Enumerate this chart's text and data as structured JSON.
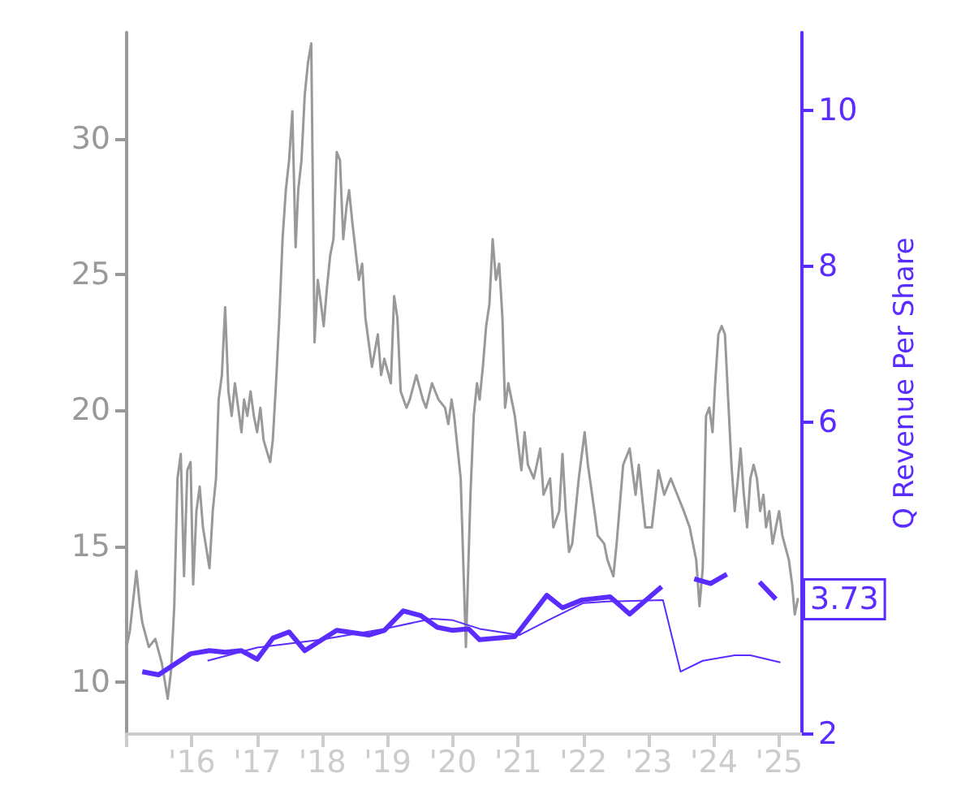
{
  "chart_data": {
    "type": "line",
    "ylabel": null,
    "y2label": "Q Revenue Per Share",
    "xlim": [
      2015,
      2025.35
    ],
    "ylim": [
      8.1,
      33.9
    ],
    "y2lim": [
      2,
      11
    ],
    "xticks": [
      {
        "value": 2015,
        "label": null
      },
      {
        "value": 2016,
        "label": "'16"
      },
      {
        "value": 2017,
        "label": "'17"
      },
      {
        "value": 2018,
        "label": "'18"
      },
      {
        "value": 2019,
        "label": "'19"
      },
      {
        "value": 2020,
        "label": "'20"
      },
      {
        "value": 2021,
        "label": "'21"
      },
      {
        "value": 2022,
        "label": "'22"
      },
      {
        "value": 2023,
        "label": "'23"
      },
      {
        "value": 2024,
        "label": "'24"
      },
      {
        "value": 2025,
        "label": "'25"
      }
    ],
    "yticks": [
      10,
      15,
      20,
      25,
      30
    ],
    "y2ticks": [
      2,
      6,
      8,
      10
    ],
    "marker": "none",
    "line_style": "solid",
    "series": [
      {
        "color": "#999999",
        "x": [
          2015.0,
          2015.05,
          2015.15,
          2015.2,
          2015.24,
          2015.34,
          2015.44,
          2015.54,
          2015.63,
          2015.68,
          2015.73,
          2015.78,
          2015.83,
          2015.88,
          2015.93,
          2015.98,
          2016.02,
          2016.07,
          2016.12,
          2016.17,
          2016.27,
          2016.32,
          2016.37,
          2016.41,
          2016.46,
          2016.51,
          2016.56,
          2016.61,
          2016.66,
          2016.71,
          2016.76,
          2016.8,
          2016.85,
          2016.9,
          2016.95,
          2017.0,
          2017.05,
          2017.1,
          2017.2,
          2017.24,
          2017.29,
          2017.34,
          2017.39,
          2017.44,
          2017.49,
          2017.54,
          2017.59,
          2017.63,
          2017.68,
          2017.73,
          2017.78,
          2017.83,
          2017.88,
          2017.93,
          2017.98,
          2018.02,
          2018.07,
          2018.12,
          2018.17,
          2018.22,
          2018.27,
          2018.32,
          2018.37,
          2018.41,
          2018.46,
          2018.56,
          2018.61,
          2018.66,
          2018.71,
          2018.76,
          2018.85,
          2018.9,
          2018.95,
          2019.05,
          2019.1,
          2019.15,
          2019.2,
          2019.29,
          2019.34,
          2019.44,
          2019.54,
          2019.59,
          2019.68,
          2019.78,
          2019.88,
          2019.93,
          2019.98,
          2020.02,
          2020.12,
          2020.2,
          2020.27,
          2020.32,
          2020.37,
          2020.41,
          2020.46,
          2020.51,
          2020.56,
          2020.61,
          2020.66,
          2020.71,
          2020.76,
          2020.8,
          2020.85,
          2020.9,
          2020.95,
          2021.05,
          2021.1,
          2021.15,
          2021.24,
          2021.34,
          2021.39,
          2021.49,
          2021.54,
          2021.63,
          2021.68,
          2021.73,
          2021.78,
          2021.83,
          2021.93,
          2022.02,
          2022.07,
          2022.17,
          2022.22,
          2022.32,
          2022.37,
          2022.46,
          2022.51,
          2022.61,
          2022.71,
          2022.8,
          2022.85,
          2022.95,
          2023.05,
          2023.15,
          2023.24,
          2023.34,
          2023.44,
          2023.54,
          2023.63,
          2023.73,
          2023.78,
          2023.83,
          2023.88,
          2023.93,
          2023.98,
          2024.02,
          2024.07,
          2024.12,
          2024.17,
          2024.22,
          2024.27,
          2024.32,
          2024.37,
          2024.41,
          2024.46,
          2024.51,
          2024.56,
          2024.61,
          2024.66,
          2024.71,
          2024.76,
          2024.8,
          2024.85,
          2024.9,
          2024.95,
          2025.0,
          2025.05,
          2025.15,
          2025.2,
          2025.24,
          2025.29
        ],
        "values": [
          11.3,
          11.9,
          14.1,
          12.9,
          12.2,
          11.3,
          11.6,
          10.7,
          9.4,
          10.4,
          12.8,
          17.5,
          18.4,
          13.9,
          17.8,
          18.1,
          13.6,
          16.3,
          17.2,
          15.7,
          14.2,
          16.3,
          17.5,
          20.4,
          21.3,
          23.8,
          20.7,
          19.8,
          21,
          20.1,
          19.2,
          20.4,
          19.8,
          20.7,
          19.8,
          19.2,
          20.1,
          18.9,
          18.1,
          18.9,
          21,
          23.4,
          26.3,
          28.1,
          29.2,
          31,
          26,
          28.1,
          29.2,
          31.6,
          32.8,
          33.5,
          22.5,
          24.8,
          23.9,
          23.1,
          24.5,
          25.7,
          26.3,
          29.5,
          29.2,
          26.3,
          27.5,
          28.1,
          26.9,
          24.8,
          25.4,
          23.4,
          22.5,
          21.6,
          22.8,
          21.3,
          21.9,
          21,
          24.2,
          23.4,
          20.7,
          20.1,
          20.4,
          21.3,
          20.4,
          20.1,
          21,
          20.4,
          20.1,
          19.5,
          20.4,
          19.8,
          17.5,
          11.3,
          16.9,
          19.8,
          21,
          20.4,
          21.6,
          23.1,
          23.9,
          26.3,
          24.8,
          25.4,
          23.4,
          20.1,
          21,
          20.4,
          19.8,
          17.8,
          19.2,
          18,
          17.5,
          18.6,
          16.9,
          17.5,
          15.7,
          16.3,
          18.4,
          16.3,
          14.8,
          15.1,
          17.5,
          19.2,
          18,
          16.3,
          15.4,
          15.1,
          14.5,
          13.9,
          15.1,
          18,
          18.6,
          16.9,
          18,
          15.7,
          15.7,
          17.8,
          16.9,
          17.5,
          16.9,
          16.3,
          15.7,
          14.5,
          12.8,
          14.2,
          19.8,
          20.1,
          19.2,
          21,
          22.8,
          23.1,
          22.8,
          20.4,
          18,
          16.3,
          17.5,
          18.6,
          16.9,
          15.7,
          17.5,
          18,
          17.5,
          16.3,
          16.9,
          15.7,
          16.3,
          15.1,
          15.7,
          16.3,
          15.4,
          14.5,
          13.6,
          12.5,
          13.1
        ]
      },
      {
        "color": "#5b2cff",
        "axis": "y2",
        "x": [
          2015.24,
          2015.49,
          2015.98,
          2016.27,
          2016.51,
          2016.76,
          2017.0,
          2017.24,
          2017.49,
          2017.73,
          2018.22,
          2018.71,
          2018.95,
          2019.24,
          2019.51,
          2019.76,
          2020.0,
          2020.24,
          2020.41,
          2020.95,
          2021.44,
          2021.68,
          2021.98,
          2022.41,
          2022.71,
          2023.2,
          2023.45,
          2023.7,
          2023.95,
          2024.2,
          2024.45,
          2024.7,
          2024.95
        ],
        "values": [
          2.8,
          2.76,
          3.03,
          3.07,
          3.05,
          3.07,
          2.96,
          3.23,
          3.31,
          3.07,
          3.33,
          3.27,
          3.33,
          3.58,
          3.52,
          3.37,
          3.33,
          3.35,
          3.21,
          3.25,
          3.78,
          3.62,
          3.72,
          3.76,
          3.54,
          3.89,
          null,
          3.99,
          3.93,
          4.05,
          null,
          3.95,
          3.73
        ],
        "value_labels": [
          null,
          null,
          null,
          null,
          null,
          null,
          null,
          null,
          null,
          null,
          null,
          null,
          null,
          null,
          null,
          null,
          null,
          null,
          null,
          null,
          null,
          null,
          null,
          null,
          null,
          null,
          null,
          null,
          null,
          null,
          null,
          null,
          "3.73"
        ]
      },
      {
        "color": "#5b2cff",
        "axis": "y2",
        "x": [
          2016.24,
          2017.0,
          2017.98,
          2018.95,
          2019.68,
          2020.0,
          2020.41,
          2021.02,
          2021.51,
          2022.0,
          2022.37,
          2023.22,
          2023.49,
          2023.83,
          2024.32,
          2024.56,
          2025.02
        ],
        "values": [
          2.94,
          3.11,
          3.21,
          3.35,
          3.48,
          3.46,
          3.35,
          3.27,
          3.48,
          3.68,
          3.7,
          3.72,
          2.8,
          2.94,
          3.01,
          3.01,
          2.92
        ]
      }
    ]
  }
}
